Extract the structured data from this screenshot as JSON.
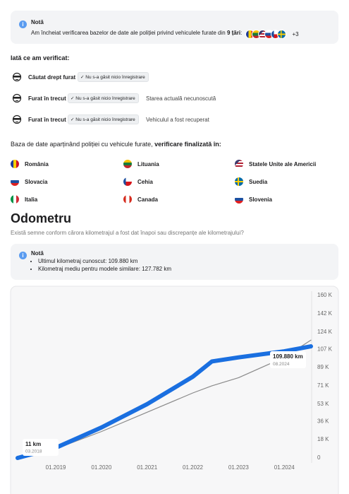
{
  "notice": {
    "title": "Notă",
    "text": "Am încheiat verificarea bazelor de date ale poliției privind vehiculele furate din",
    "text_bold": "9 țări",
    "text_end": ":",
    "more": "+3"
  },
  "checks": {
    "title": "Iată ce am verificat:",
    "items": [
      {
        "label": "Căutat drept furat",
        "badge": "Nu s-a găsit nicio înregistrare"
      },
      {
        "label": "Furat în trecut",
        "badge": "Nu s-a găsit nicio înregistrare",
        "note": "Starea actuală necunoscută"
      },
      {
        "label": "Furat în trecut",
        "badge": "Nu s-a găsit nicio înregistrare",
        "note": "Vehiculul a fost recuperat"
      }
    ]
  },
  "countries": {
    "text": "Baza de date aparținând poliției cu vehicule furate,",
    "text_bold": "verificare finalizată în:",
    "items": [
      "România",
      "Lituania",
      "Statele Unite ale Americii",
      "Slovacia",
      "Cehia",
      "Suedia",
      "Italia",
      "Canada",
      "Slovenia"
    ]
  },
  "odometer": {
    "title": "Odometru",
    "subtitle": "Există semne conform cărora kilometrajul a fost dat înapoi sau discrepanțe ale kilometrajului?",
    "note": {
      "title": "Notă",
      "items": [
        "Ultimul kilometraj cunoscut: 109.880 km",
        "Kilometraj mediu pentru modele similare: 127.782 km"
      ]
    }
  },
  "chart_data": {
    "type": "line",
    "x": [
      "03.2018",
      "01.2019",
      "01.2020",
      "01.2021",
      "01.2022",
      "06.2022",
      "01.2023",
      "01.2024",
      "08.2024"
    ],
    "xlim": [
      "03.2018",
      "08.2024"
    ],
    "xticks": [
      "01.2019",
      "01.2020",
      "01.2021",
      "01.2022",
      "01.2023",
      "01.2024"
    ],
    "ylim": [
      0,
      160000
    ],
    "yticks": [
      {
        "value": 0,
        "label": "0"
      },
      {
        "value": 18000,
        "label": "18 K"
      },
      {
        "value": 36000,
        "label": "36 K"
      },
      {
        "value": 53000,
        "label": "53 K"
      },
      {
        "value": 71000,
        "label": "71 K"
      },
      {
        "value": 89000,
        "label": "89 K"
      },
      {
        "value": 107000,
        "label": "107 K"
      },
      {
        "value": 124000,
        "label": "124 K"
      },
      {
        "value": 142000,
        "label": "142 K"
      },
      {
        "value": 160000,
        "label": "160 K"
      }
    ],
    "series": [
      {
        "color": "#8a8a8a",
        "values": [
          0,
          9000,
          26000,
          45000,
          64000,
          71000,
          79000,
          99000,
          116000
        ]
      },
      {
        "color": "#1a6fe0",
        "values": [
          11,
          10000,
          30000,
          53000,
          80000,
          95000,
          99000,
          105000,
          109880
        ],
        "value_labels": [
          "11 km",
          null,
          null,
          null,
          null,
          null,
          null,
          null,
          "109.880 km"
        ]
      }
    ]
  }
}
